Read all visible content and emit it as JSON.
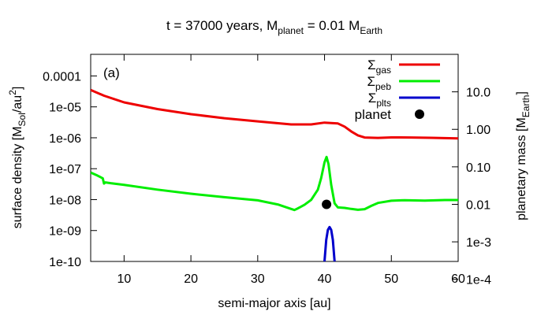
{
  "chart_data": {
    "type": "line",
    "title": {
      "prefix": "t = 37000 years, M",
      "sub1": "planet",
      "mid": " = 0.01 M",
      "sub2": "Earth"
    },
    "panel_label": "(a)",
    "xlabel": "semi-major axis [au]",
    "ylabel_left": {
      "main": "surface density [M",
      "sub": "Sol",
      "after": "/au",
      "sup": "2",
      "close": "]"
    },
    "ylabel_right": {
      "main": "planetary mass [M",
      "sub": "Earth",
      "close": "]"
    },
    "xlim": [
      5,
      60
    ],
    "ylim_left": [
      1e-10,
      0.0005
    ],
    "ylim_right": [
      0.0003,
      100
    ],
    "left_scale": "log",
    "right_scale": "log",
    "x_ticks": [
      10,
      20,
      30,
      40,
      50,
      60
    ],
    "x_tick_labels": [
      "10",
      "20",
      "30",
      "40",
      "50",
      "60"
    ],
    "y_left_ticks": [
      1e-10,
      1e-09,
      1e-08,
      1e-07,
      1e-06,
      1e-05,
      0.0001
    ],
    "y_left_tick_labels": [
      "1e-10",
      "1e-09",
      "1e-08",
      "1e-07",
      "1e-06",
      "1e-05",
      "0.0001"
    ],
    "y_right_ticks": [
      0.0001,
      0.001,
      0.01,
      0.1,
      1,
      10
    ],
    "y_right_tick_labels": [
      "1e-4",
      "1e-3",
      "0.01",
      "0.10",
      "1.00",
      "10.0"
    ],
    "legend": {
      "position": "top-right",
      "entries": [
        {
          "main": "Σ",
          "sub": "gas",
          "kind": "line",
          "color": "#ee0000"
        },
        {
          "main": "Σ",
          "sub": "peb",
          "kind": "line",
          "color": "#00ee00"
        },
        {
          "main": "Σ",
          "sub": "plts",
          "kind": "line",
          "color": "#0000cc"
        },
        {
          "main": "planet",
          "sub": "",
          "kind": "point",
          "color": "#000000"
        }
      ]
    },
    "series": [
      {
        "name": "Σgas",
        "color": "#ee0000",
        "x": [
          5,
          7,
          10,
          15,
          20,
          25,
          30,
          35,
          38,
          40,
          42,
          43,
          44,
          45,
          46,
          48,
          50,
          53,
          56,
          60
        ],
        "y": [
          3.5e-05,
          2.3e-05,
          1.4e-05,
          8.5e-06,
          5.8e-06,
          4.3e-06,
          3.4e-06,
          2.7e-06,
          2.7e-06,
          3.1e-06,
          2.9e-06,
          2.3e-06,
          1.6e-06,
          1.2e-06,
          1.02e-06,
          9.9e-07,
          1.03e-06,
          1.02e-06,
          1e-06,
          9.5e-07
        ]
      },
      {
        "name": "Σpeb",
        "color": "#00ee00",
        "x": [
          5,
          6,
          6.8,
          7,
          7.2,
          8,
          10,
          15,
          20,
          25,
          30,
          33,
          35,
          35.5,
          36,
          37,
          38,
          39,
          39.5,
          40,
          40.3,
          40.6,
          41,
          41.5,
          42,
          43,
          44,
          45,
          46,
          47,
          48,
          50,
          52,
          55,
          58,
          60
        ],
        "y": [
          7.5e-08,
          6e-08,
          4.9e-08,
          3.3e-08,
          3.6e-08,
          3.4e-08,
          3e-08,
          2.1e-08,
          1.55e-08,
          1.2e-08,
          9.5e-09,
          7e-09,
          5e-09,
          4.6e-09,
          5.2e-09,
          6.8e-09,
          9.8e-09,
          2.1e-08,
          5e-08,
          1.6e-07,
          2.4e-07,
          1.4e-07,
          3e-08,
          7.6e-09,
          5.6e-09,
          5.4e-09,
          5e-09,
          4.7e-09,
          4.9e-09,
          6.3e-09,
          7.8e-09,
          9.2e-09,
          9.6e-09,
          9.3e-09,
          9.7e-09,
          9.7e-09
        ]
      },
      {
        "name": "Σplts",
        "color": "#0000cc",
        "x": [
          40.0,
          40.25,
          40.5,
          40.75,
          41.0,
          41.25,
          41.5
        ],
        "y": [
          1e-10,
          5e-10,
          1.05e-09,
          1.3e-09,
          1.05e-09,
          5e-10,
          1e-10
        ]
      }
    ],
    "planet": {
      "x": 40.3,
      "mass": 0.01
    }
  }
}
